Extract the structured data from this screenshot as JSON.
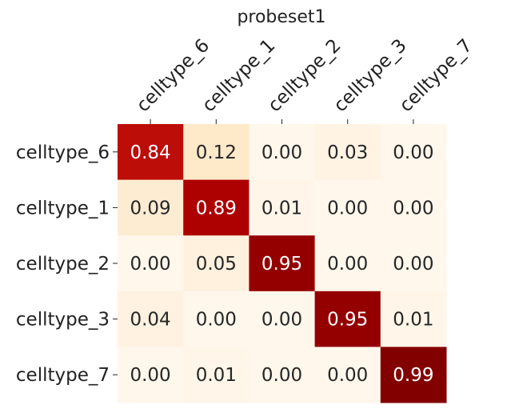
{
  "chart_data": {
    "type": "heatmap",
    "title": "probeset1",
    "rows": [
      "celltype_6",
      "celltype_1",
      "celltype_2",
      "celltype_3",
      "celltype_7"
    ],
    "columns": [
      "celltype_6",
      "celltype_1",
      "celltype_2",
      "celltype_3",
      "celltype_7"
    ],
    "values": [
      [
        0.84,
        0.12,
        0.0,
        0.03,
        0.0
      ],
      [
        0.09,
        0.89,
        0.01,
        0.0,
        0.0
      ],
      [
        0.0,
        0.05,
        0.95,
        0.0,
        0.0
      ],
      [
        0.04,
        0.0,
        0.0,
        0.95,
        0.01
      ],
      [
        0.0,
        0.01,
        0.0,
        0.0,
        0.99
      ]
    ],
    "value_format": "0.00",
    "vmin": 0,
    "vmax": 1,
    "colormap": "OrRd",
    "x_ticks_position": "top",
    "colorbar": false,
    "grid": false
  }
}
